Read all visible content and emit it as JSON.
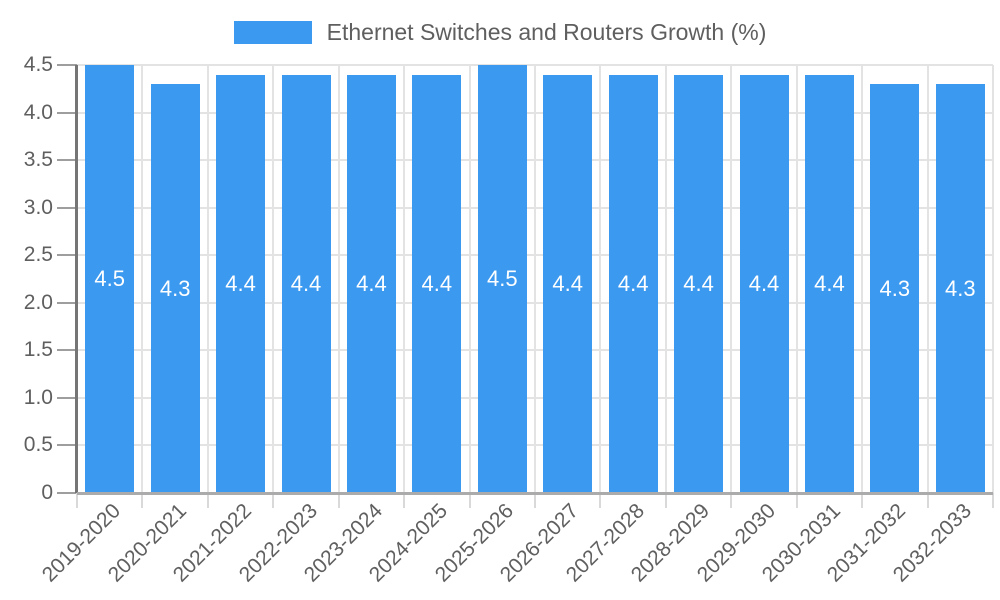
{
  "chart_data": {
    "type": "bar",
    "title": "Ethernet Switches and Routers Growth (%)",
    "legend": {
      "position": "top",
      "label": "Ethernet Switches and Routers Growth (%)"
    },
    "categories": [
      "2019-2020",
      "2020-2021",
      "2021-2022",
      "2022-2023",
      "2023-2024",
      "2024-2025",
      "2025-2026",
      "2026-2027",
      "2027-2028",
      "2028-2029",
      "2029-2030",
      "2030-2031",
      "2031-2032",
      "2032-2033"
    ],
    "values": [
      4.5,
      4.3,
      4.4,
      4.4,
      4.4,
      4.4,
      4.5,
      4.4,
      4.4,
      4.4,
      4.4,
      4.4,
      4.3,
      4.3
    ],
    "value_labels": [
      "4.5",
      "4.3",
      "4.4",
      "4.4",
      "4.4",
      "4.4",
      "4.5",
      "4.4",
      "4.4",
      "4.4",
      "4.4",
      "4.4",
      "4.3",
      "4.3"
    ],
    "xlabel": "",
    "ylabel": "",
    "ylim": [
      0,
      4.5
    ],
    "ytick_values": [
      0,
      0.5,
      1,
      1.5,
      2,
      2.5,
      3,
      3.5,
      4,
      4.5
    ],
    "ytick_labels": [
      "0",
      "0.5",
      "1.0",
      "1.5",
      "2.0",
      "2.5",
      "3.0",
      "3.5",
      "4.0",
      "4.5"
    ],
    "grid": true,
    "colors": {
      "bar": "#3B99F0",
      "grid": "#e3e3e3",
      "axis_y": "#757575",
      "axis_x": "#ababab",
      "tick_y": "#9e9e9e",
      "tick_x": "#d9d9d9",
      "label": "#5f5f5f",
      "value_label": "#ffffff"
    }
  }
}
